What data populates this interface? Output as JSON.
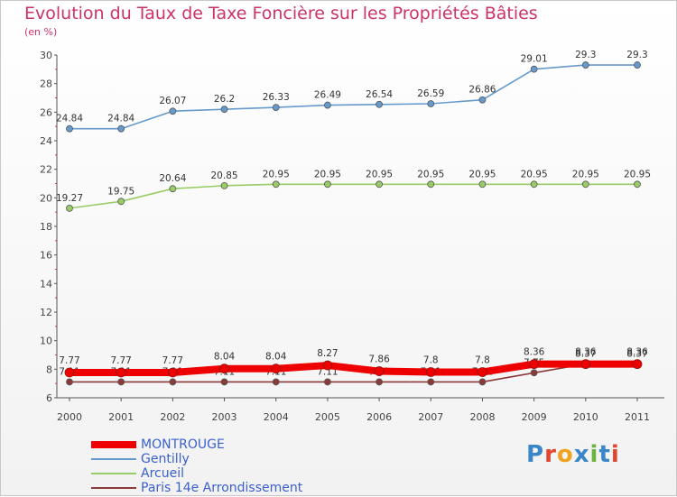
{
  "header": {
    "title": "Evolution du Taux de Taxe Foncière sur les Propriétés Bâties",
    "unit": "(en %)"
  },
  "logo": {
    "letters": [
      "P",
      "r",
      "o",
      "x",
      "i",
      "t",
      "i"
    ],
    "colors": [
      "#3b86c8",
      "#e0462e",
      "#f0a21e",
      "#3b86c8",
      "#6db33f",
      "#3b86c8",
      "#e0462e"
    ]
  },
  "chart_data": {
    "type": "line",
    "title": "Evolution du Taux de Taxe Foncière sur les Propriétés Bâties",
    "ylabel": "(en %)",
    "xlabel": "",
    "ylim": [
      6,
      30
    ],
    "yticks": [
      6,
      8,
      10,
      12,
      14,
      16,
      18,
      20,
      22,
      24,
      26,
      28,
      30
    ],
    "categories": [
      "2000",
      "2001",
      "2002",
      "2003",
      "2004",
      "2005",
      "2006",
      "2007",
      "2008",
      "2009",
      "2010",
      "2011"
    ],
    "series": [
      {
        "name": "Paris 14e  Arrondissement",
        "color": "#8b3a3a",
        "values": [
          7.11,
          7.11,
          7.11,
          7.11,
          7.11,
          7.11,
          7.11,
          7.11,
          7.11,
          7.75,
          8.37,
          8.37
        ],
        "labels": [
          "7.11",
          "7.11",
          "7.11",
          "7.11",
          "7.11",
          "7.11",
          "7.11",
          "7.11",
          "7.11",
          "7.75",
          "8.37",
          "8.37"
        ]
      },
      {
        "name": "Arcueil",
        "color": "#99cc66",
        "values": [
          19.27,
          19.75,
          20.64,
          20.85,
          20.95,
          20.95,
          20.95,
          20.95,
          20.95,
          20.95,
          20.95,
          20.95
        ],
        "labels": [
          "19.27",
          "19.75",
          "20.64",
          "20.85",
          "20.95",
          "20.95",
          "20.95",
          "20.95",
          "20.95",
          "20.95",
          "20.95",
          "20.95"
        ]
      },
      {
        "name": "Gentilly",
        "color": "#6699cc",
        "values": [
          24.84,
          24.84,
          26.07,
          26.2,
          26.33,
          26.49,
          26.54,
          26.59,
          26.86,
          29.01,
          29.3,
          29.3
        ],
        "labels": [
          "24.84",
          "24.84",
          "26.07",
          "26.2",
          "26.33",
          "26.49",
          "26.54",
          "26.59",
          "26.86",
          "29.01",
          "29.3",
          "29.3"
        ]
      },
      {
        "name": "MONTROUGE",
        "color": "#ee0000",
        "values": [
          7.77,
          7.77,
          7.77,
          8.04,
          8.04,
          8.27,
          7.86,
          7.8,
          7.8,
          8.36,
          8.36,
          8.36
        ],
        "labels": [
          "7.77",
          "7.77",
          "7.77",
          "8.04",
          "8.04",
          "8.27",
          "7.86",
          "7.8",
          "7.8",
          "8.36",
          "8.36",
          "8.36"
        ]
      }
    ],
    "legend_order": [
      "MONTROUGE",
      "Gentilly",
      "Arcueil",
      "Paris 14e  Arrondissement"
    ],
    "legend_position": "bottom-left",
    "grid": false
  }
}
